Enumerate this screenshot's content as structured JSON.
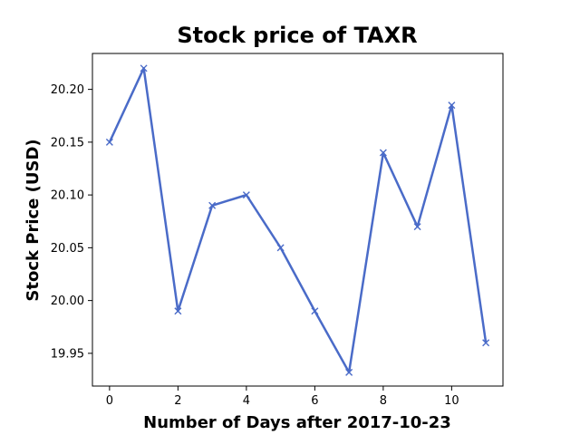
{
  "chart_data": {
    "type": "line",
    "title": "Stock price of TAXR",
    "xlabel": "Number of Days after 2017-10-23",
    "ylabel": "Stock Price (USD)",
    "x": [
      0,
      1,
      2,
      3,
      4,
      5,
      6,
      7,
      8,
      9,
      10,
      11
    ],
    "series": [
      {
        "values": [
          20.15,
          20.22,
          19.99,
          20.09,
          20.1,
          20.05,
          19.99,
          19.932,
          20.14,
          20.07,
          20.185,
          19.96
        ],
        "color": "#4a6bc8",
        "marker": "x"
      }
    ],
    "xlim": [
      -0.5,
      11.5
    ],
    "ylim": [
      19.919,
      20.234
    ],
    "xticks": [
      0,
      2,
      4,
      6,
      8,
      10
    ],
    "xtick_labels": [
      "0",
      "2",
      "4",
      "6",
      "8",
      "10"
    ],
    "yticks": [
      19.95,
      20.0,
      20.05,
      20.1,
      20.15,
      20.2
    ],
    "ytick_labels": [
      "19.95",
      "20.00",
      "20.05",
      "20.10",
      "20.15",
      "20.20"
    ],
    "grid": false,
    "legend": "none"
  }
}
